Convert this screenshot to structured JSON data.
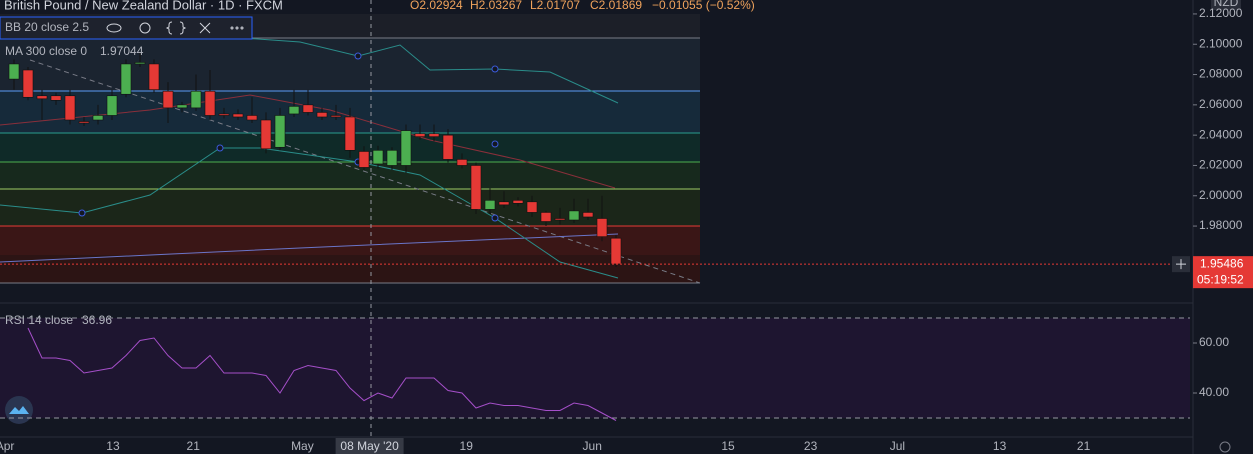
{
  "header": {
    "symbol": "British Pound / New Zealand Dollar · 1D · FXCM",
    "open": "O2.02924",
    "high": "H2.03267",
    "low": "L2.01707",
    "close": "C2.01869",
    "change": "−0.01055 (−0.52%)"
  },
  "indicators": [
    {
      "name": "BB 20 close 2.5"
    },
    {
      "name": "MA 300 close 0",
      "value": "1.97044"
    }
  ],
  "chart_data": [
    {
      "type": "candlestick",
      "currency": "NZD",
      "up_color": "#4caf50",
      "down_color": "#e53935",
      "ylim": [
        1.9312,
        2.1292
      ],
      "yticks": [
        {
          "value": 2.12,
          "label": "2.12000"
        },
        {
          "value": 2.1,
          "label": "2.10000"
        },
        {
          "value": 2.08,
          "label": "2.08000"
        },
        {
          "value": 2.06,
          "label": "2.06000"
        },
        {
          "value": 2.04,
          "label": "2.04000"
        },
        {
          "value": 2.02,
          "label": "2.02000"
        },
        {
          "value": 2.0,
          "label": "2.00000"
        },
        {
          "value": 1.98,
          "label": "1.98000"
        }
      ],
      "open": [
        2.077,
        2.083,
        2.066,
        2.066,
        2.066,
        2.049,
        2.05,
        2.053,
        2.067,
        2.087,
        2.087,
        2.069,
        2.058,
        2.058,
        2.069,
        2.054,
        2.054,
        2.053,
        2.05,
        2.032,
        2.054,
        2.06,
        2.055,
        2.053,
        2.052,
        2.02924,
        2.021,
        2.02,
        2.02,
        2.041,
        2.041,
        2.04,
        2.024,
        2.02,
        1.991,
        1.996,
        1.997,
        1.996,
        1.989,
        1.985,
        1.984,
        1.989,
        1.985,
        1.972
      ],
      "high": [
        2.09,
        2.085,
        2.07,
        2.068,
        2.07,
        2.052,
        2.06,
        2.07,
        2.09,
        2.095,
        2.09,
        2.075,
        2.062,
        2.08,
        2.083,
        2.058,
        2.057,
        2.065,
        2.055,
        2.058,
        2.07,
        2.07,
        2.058,
        2.06,
        2.058,
        2.03267,
        2.033,
        2.032,
        2.047,
        2.047,
        2.047,
        2.044,
        2.028,
        2.022,
        2.005,
        2.003,
        1.999,
        2.0,
        1.99,
        1.992,
        1.998,
        1.998,
        2.0,
        1.974
      ],
      "low": [
        2.07,
        2.063,
        2.05,
        2.06,
        2.047,
        2.046,
        2.047,
        2.05,
        2.065,
        2.085,
        2.068,
        2.048,
        2.055,
        2.056,
        2.05,
        2.051,
        2.05,
        2.048,
        2.028,
        2.03,
        2.052,
        2.053,
        2.05,
        2.05,
        2.025,
        2.01707,
        2.018,
        2.017,
        2.015,
        2.037,
        2.036,
        2.022,
        2.018,
        1.988,
        1.988,
        1.992,
        1.993,
        1.986,
        1.98,
        1.981,
        1.982,
        1.984,
        1.97,
        1.953
      ],
      "close": [
        2.087,
        2.065,
        2.064,
        2.063,
        2.05,
        2.048,
        2.053,
        2.066,
        2.087,
        2.088,
        2.07,
        2.058,
        2.06,
        2.069,
        2.053,
        2.053,
        2.052,
        2.05,
        2.031,
        2.053,
        2.059,
        2.055,
        2.052,
        2.052,
        2.03,
        2.01869,
        2.03,
        2.03,
        2.043,
        2.039,
        2.039,
        2.024,
        2.02,
        1.991,
        1.997,
        1.994,
        1.995,
        1.989,
        1.983,
        1.984,
        1.99,
        1.986,
        1.973,
        1.955
      ],
      "last_price": 1.95486,
      "countdown": "05:19:52",
      "xticks": [
        {
          "value": -0.64,
          "label": "Apr"
        },
        {
          "value": 7.07,
          "label": "13"
        },
        {
          "value": 12.8,
          "label": "21"
        },
        {
          "value": 20.6,
          "label": "May"
        },
        {
          "value": 32.3,
          "label": "19"
        },
        {
          "value": 41.3,
          "label": "Jun"
        },
        {
          "value": 51,
          "label": "15"
        },
        {
          "value": 56.9,
          "label": "23"
        },
        {
          "value": 63.1,
          "label": "Jul"
        },
        {
          "value": 70.4,
          "label": "13"
        },
        {
          "value": 76.4,
          "label": "21"
        }
      ],
      "crosshair": {
        "value": 25.4,
        "label": "08 May '20"
      }
    },
    {
      "type": "line",
      "ylim": [
        24.4,
        75.2
      ],
      "yticks": [
        {
          "value": 60,
          "label": "60.00"
        },
        {
          "value": 40,
          "label": "40.00"
        }
      ],
      "bands": [
        70,
        30
      ],
      "series": [
        {
          "name": "RSI 14 close",
          "legend_value": "36.96",
          "color": "#a54fc9",
          "values": [
            null,
            66,
            54,
            54,
            53,
            48,
            49,
            50,
            55,
            61,
            62,
            55,
            50,
            50,
            55,
            48,
            48,
            48,
            47,
            40,
            49,
            51,
            50,
            49,
            42,
            36.96,
            40,
            38,
            46,
            46,
            46,
            41,
            40,
            34,
            36,
            35,
            35,
            34,
            33,
            33,
            36,
            35,
            32,
            29
          ]
        }
      ]
    }
  ]
}
